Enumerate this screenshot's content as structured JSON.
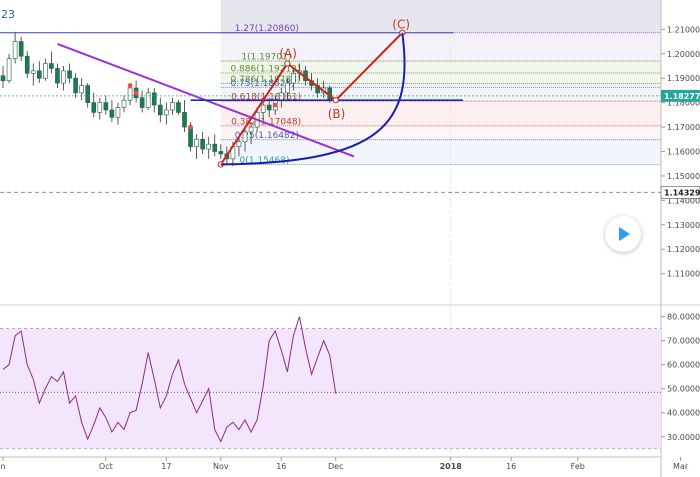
{
  "corner_label": "23",
  "chart_data": [
    {
      "type": "candlestick",
      "title": "",
      "price_axis": {
        "range": [
          1.098,
          1.222
        ],
        "ticks": [
          "1.21000",
          "1.20000",
          "1.19000",
          "1.18000",
          "1.17000",
          "1.16000",
          "1.15000",
          "1.14000",
          "1.13000",
          "1.12000",
          "1.11000"
        ],
        "tick_values": [
          1.21,
          1.2,
          1.19,
          1.18,
          1.17,
          1.16,
          1.15,
          1.14,
          1.13,
          1.12,
          1.11
        ],
        "last_price_label": "1.18277",
        "last_price": 1.18277,
        "marker_label": "1.14329",
        "marker_price": 1.14329
      },
      "x_axis": {
        "ticks": [
          "n",
          "Oct",
          "17",
          "Nov",
          "16",
          "Dec",
          "2018",
          "16",
          "Feb",
          "Mar"
        ],
        "tick_index": [
          0,
          17,
          27,
          36,
          46,
          55,
          74,
          84,
          95,
          112
        ]
      },
      "ohlc": [
        [
          1.191,
          1.195,
          1.186,
          1.189
        ],
        [
          1.189,
          1.2,
          1.188,
          1.198
        ],
        [
          1.198,
          1.209,
          1.196,
          1.205
        ],
        [
          1.205,
          1.207,
          1.197,
          1.199
        ],
        [
          1.199,
          1.201,
          1.19,
          1.192
        ],
        [
          1.192,
          1.196,
          1.187,
          1.193
        ],
        [
          1.193,
          1.197,
          1.188,
          1.19
        ],
        [
          1.19,
          1.198,
          1.189,
          1.196
        ],
        [
          1.196,
          1.201,
          1.192,
          1.194
        ],
        [
          1.194,
          1.196,
          1.186,
          1.188
        ],
        [
          1.188,
          1.195,
          1.185,
          1.193
        ],
        [
          1.193,
          1.196,
          1.188,
          1.19
        ],
        [
          1.19,
          1.192,
          1.182,
          1.184
        ],
        [
          1.184,
          1.19,
          1.181,
          1.187
        ],
        [
          1.187,
          1.188,
          1.178,
          1.18
        ],
        [
          1.18,
          1.184,
          1.174,
          1.176
        ],
        [
          1.176,
          1.182,
          1.173,
          1.18
        ],
        [
          1.18,
          1.183,
          1.175,
          1.177
        ],
        [
          1.177,
          1.181,
          1.172,
          1.174
        ],
        [
          1.174,
          1.18,
          1.171,
          1.178
        ],
        [
          1.178,
          1.183,
          1.176,
          1.181
        ],
        [
          1.181,
          1.188,
          1.179,
          1.186
        ],
        [
          1.186,
          1.189,
          1.18,
          1.182
        ],
        [
          1.182,
          1.185,
          1.176,
          1.178
        ],
        [
          1.178,
          1.186,
          1.177,
          1.184
        ],
        [
          1.184,
          1.186,
          1.176,
          1.179
        ],
        [
          1.179,
          1.182,
          1.172,
          1.175
        ],
        [
          1.175,
          1.18,
          1.171,
          1.177
        ],
        [
          1.177,
          1.182,
          1.175,
          1.18
        ],
        [
          1.18,
          1.181,
          1.175,
          1.176
        ],
        [
          1.176,
          1.181,
          1.168,
          1.17
        ],
        [
          1.17,
          1.172,
          1.16,
          1.162
        ],
        [
          1.162,
          1.167,
          1.157,
          1.165
        ],
        [
          1.165,
          1.168,
          1.159,
          1.161
        ],
        [
          1.161,
          1.166,
          1.157,
          1.163
        ],
        [
          1.163,
          1.167,
          1.158,
          1.16
        ],
        [
          1.16,
          1.163,
          1.157,
          1.159
        ],
        [
          1.159,
          1.162,
          1.155,
          1.157
        ],
        [
          1.157,
          1.164,
          1.154,
          1.162
        ],
        [
          1.162,
          1.166,
          1.158,
          1.164
        ],
        [
          1.164,
          1.17,
          1.16,
          1.168
        ],
        [
          1.168,
          1.172,
          1.163,
          1.17
        ],
        [
          1.17,
          1.178,
          1.168,
          1.176
        ],
        [
          1.176,
          1.182,
          1.173,
          1.179
        ],
        [
          1.179,
          1.182,
          1.174,
          1.177
        ],
        [
          1.177,
          1.183,
          1.175,
          1.181
        ],
        [
          1.181,
          1.186,
          1.178,
          1.184
        ],
        [
          1.184,
          1.19,
          1.181,
          1.188
        ],
        [
          1.188,
          1.194,
          1.185,
          1.192
        ],
        [
          1.192,
          1.196,
          1.189,
          1.193
        ],
        [
          1.193,
          1.195,
          1.187,
          1.189
        ],
        [
          1.189,
          1.192,
          1.185,
          1.187
        ],
        [
          1.187,
          1.19,
          1.182,
          1.184
        ],
        [
          1.184,
          1.189,
          1.182,
          1.186
        ],
        [
          1.186,
          1.187,
          1.18,
          1.181
        ]
      ],
      "ma_dots": [
        {
          "i": 21,
          "p": 1.187
        },
        {
          "i": 22,
          "p": 1.184
        },
        {
          "i": 31,
          "p": 1.17
        },
        {
          "i": 43,
          "p": 1.181
        },
        {
          "i": 45,
          "p": 1.179
        }
      ],
      "fib_levels": [
        {
          "label": "1.27(1.20860)",
          "price": 1.2086,
          "color": "#7b3fb5"
        },
        {
          "label": "1(1.19701)",
          "price": 1.19701,
          "color": "#5a8f29"
        },
        {
          "label": "0.886(1.19212)",
          "price": 1.19212,
          "color": "#5a8f29"
        },
        {
          "label": "0.786(1.18783)",
          "price": 1.18783,
          "color": "#5a8f29"
        },
        {
          "label": "0.75(1.18628)",
          "price": 1.18628,
          "color": "#3b5fb7"
        },
        {
          "label": "0.618(1.18061)",
          "price": 1.18061,
          "color": "#c0392b"
        },
        {
          "label": "0.382(1.17048)",
          "price": 1.17048,
          "color": "#c0392b"
        },
        {
          "label": "0.25(1.16482)",
          "price": 1.16482,
          "color": "#3b5fb7"
        },
        {
          "label": "0(1.15468)",
          "price": 1.15468,
          "color": "#26a69a"
        }
      ],
      "annotations": {
        "wave_labels": [
          "(A)",
          "(B)",
          "(C)"
        ],
        "waves": [
          {
            "label": "(A)",
            "i": 47,
            "p": 1.196
          },
          {
            "label": "(B)",
            "i": 55,
            "p": 1.181
          },
          {
            "label": "(C)",
            "i": 66,
            "p": 1.2086
          }
        ],
        "origin": {
          "i": 36,
          "p": 1.15468
        },
        "trendline": [
          {
            "i": 9,
            "p": 1.204
          },
          {
            "i": 58,
            "p": 1.158
          }
        ],
        "level_line": {
          "i_start": 31,
          "i_end": 76,
          "p": 1.181
        }
      }
    },
    {
      "type": "line",
      "title": "",
      "y_axis": {
        "range": [
          22,
          84
        ],
        "ticks": [
          "80.0000",
          "70.0000",
          "60.0000",
          "50.0000",
          "40.0000",
          "30.0000"
        ],
        "tick_values": [
          80,
          70,
          60,
          50,
          40,
          30
        ],
        "bands": [
          25,
          75
        ],
        "marker": 48.5
      },
      "values": [
        58,
        60,
        72,
        74,
        60,
        54,
        44,
        50,
        55,
        53,
        57,
        44,
        47,
        36,
        29,
        35,
        42,
        38,
        32,
        36,
        33,
        40,
        41,
        52,
        65,
        54,
        42,
        47,
        56,
        62,
        52,
        46,
        40,
        45,
        50,
        33,
        28,
        34,
        36,
        33,
        37,
        32,
        37,
        51,
        70,
        74,
        66,
        57,
        72,
        80,
        67,
        56,
        63,
        70,
        64,
        48
      ]
    }
  ]
}
